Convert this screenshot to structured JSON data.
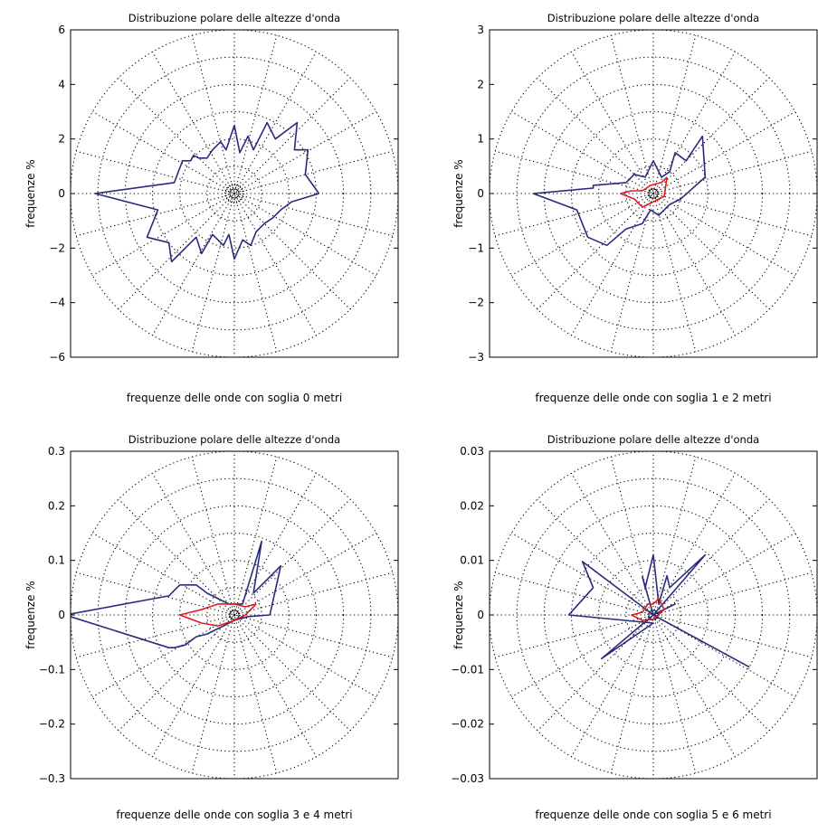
{
  "figure": {
    "background": "#ffffff",
    "grid_style": "dotted",
    "series_colors": {
      "outer": "#2b2b7e",
      "inner": "#e01b24"
    }
  },
  "chart_data": [
    {
      "type": "polar-line",
      "title": "Distribuzione polare delle altezze d'onda",
      "xlabel": "frequenze delle onde con soglia 0 metri",
      "ylabel": "frequenze %",
      "ylim": [
        -6,
        6
      ],
      "yticks": [
        "6",
        "4",
        "2",
        "0",
        "−2",
        "−4",
        "−6"
      ],
      "grid": true,
      "rings": [
        1,
        2,
        3,
        4,
        5,
        6
      ],
      "series": [
        {
          "color": "#2b2b7e",
          "points": [
            [
              3.1,
              0
            ],
            [
              2.6,
              0.7
            ],
            [
              2.7,
              1.6
            ],
            [
              2.2,
              1.6
            ],
            [
              2.3,
              2.6
            ],
            [
              1.5,
              2.0
            ],
            [
              1.2,
              2.6
            ],
            [
              0.7,
              1.6
            ],
            [
              0.5,
              2.1
            ],
            [
              0.2,
              1.5
            ],
            [
              0,
              2.5
            ],
            [
              -0.3,
              1.6
            ],
            [
              -0.5,
              1.9
            ],
            [
              -0.8,
              1.6
            ],
            [
              -1.0,
              1.3
            ],
            [
              -1.3,
              1.3
            ],
            [
              -1.5,
              1.4
            ],
            [
              -1.6,
              1.2
            ],
            [
              -1.9,
              1.2
            ],
            [
              -2.2,
              0.4
            ],
            [
              -5.1,
              0
            ],
            [
              -2.8,
              -0.6
            ],
            [
              -3.2,
              -1.6
            ],
            [
              -2.4,
              -1.8
            ],
            [
              -2.3,
              -2.5
            ],
            [
              -1.4,
              -1.6
            ],
            [
              -1.2,
              -2.2
            ],
            [
              -0.8,
              -1.5
            ],
            [
              -0.4,
              -1.9
            ],
            [
              -0.2,
              -1.5
            ],
            [
              0,
              -2.4
            ],
            [
              0.3,
              -1.7
            ],
            [
              0.6,
              -1.9
            ],
            [
              0.8,
              -1.4
            ],
            [
              1.1,
              -1.1
            ],
            [
              1.4,
              -0.9
            ],
            [
              1.7,
              -0.6
            ],
            [
              2.1,
              -0.3
            ],
            [
              3.1,
              0
            ]
          ]
        }
      ],
      "center_rings": [
        0.1,
        0.22,
        0.34
      ]
    },
    {
      "type": "polar-line",
      "title": "Distribuzione polare delle altezze d'onda",
      "xlabel": "frequenze delle onde con soglia 1 e 2 metri",
      "ylabel": "frequenze %",
      "ylim": [
        -3,
        3
      ],
      "yticks": [
        "3",
        "2",
        "1",
        "0",
        "−1",
        "−2",
        "−3"
      ],
      "grid": true,
      "rings": [
        0.5,
        1,
        1.5,
        2,
        2.5,
        3
      ],
      "series": [
        {
          "color": "#2b2b7e",
          "points": [
            [
              0.95,
              0.3
            ],
            [
              0.9,
              1.05
            ],
            [
              0.6,
              0.6
            ],
            [
              0.4,
              0.75
            ],
            [
              0.3,
              0.4
            ],
            [
              0.15,
              0.3
            ],
            [
              0,
              0.6
            ],
            [
              -0.15,
              0.3
            ],
            [
              -0.35,
              0.35
            ],
            [
              -0.5,
              0.2
            ],
            [
              -1.1,
              0.15
            ],
            [
              -1.1,
              0.1
            ],
            [
              -2.2,
              0
            ],
            [
              -1.4,
              -0.3
            ],
            [
              -1.2,
              -0.8
            ],
            [
              -0.85,
              -0.95
            ],
            [
              -0.5,
              -0.65
            ],
            [
              -0.2,
              -0.55
            ],
            [
              -0.05,
              -0.3
            ],
            [
              0.1,
              -0.4
            ],
            [
              0.3,
              -0.2
            ],
            [
              0.5,
              -0.1
            ],
            [
              0.95,
              0.3
            ]
          ]
        },
        {
          "color": "#e01b24",
          "points": [
            [
              0.25,
              0.3
            ],
            [
              0.15,
              0.2
            ],
            [
              -0.05,
              0.15
            ],
            [
              -0.2,
              0.05
            ],
            [
              -0.4,
              0.05
            ],
            [
              -0.6,
              0
            ],
            [
              -0.35,
              -0.1
            ],
            [
              -0.2,
              -0.25
            ],
            [
              0,
              -0.15
            ],
            [
              0.2,
              -0.05
            ],
            [
              0.25,
              0.3
            ]
          ]
        }
      ],
      "center_rings": [
        0.05,
        0.1
      ]
    },
    {
      "type": "polar-line",
      "title": "Distribuzione polare delle altezze d'onda",
      "xlabel": "frequenze delle onde con soglia 3 e 4 metri",
      "ylabel": "frequenze %",
      "ylim": [
        -0.3,
        0.3
      ],
      "yticks": [
        "0.3",
        "0.2",
        "0.1",
        "0",
        "−0.1",
        "−0.2",
        "−0.3"
      ],
      "grid": true,
      "rings": [
        0.05,
        0.1,
        0.15,
        0.2,
        0.25,
        0.3
      ],
      "series": [
        {
          "color": "#2b2b7e",
          "points": [
            [
              0.065,
              0.0
            ],
            [
              0.085,
              0.09
            ],
            [
              0.035,
              0.04
            ],
            [
              0.05,
              0.135
            ],
            [
              0.015,
              0.02
            ],
            [
              -0.01,
              0.02
            ],
            [
              -0.03,
              0.03
            ],
            [
              -0.05,
              0.04
            ],
            [
              -0.07,
              0.055
            ],
            [
              -0.1,
              0.055
            ],
            [
              -0.12,
              0.035
            ],
            [
              -0.31,
              0
            ],
            [
              -0.12,
              -0.06
            ],
            [
              -0.11,
              -0.06
            ],
            [
              -0.09,
              -0.055
            ],
            [
              -0.07,
              -0.04
            ],
            [
              -0.05,
              -0.035
            ],
            [
              -0.02,
              -0.02
            ],
            [
              0,
              -0.01
            ],
            [
              0.025,
              -0.003
            ],
            [
              0.065,
              0.0
            ]
          ]
        },
        {
          "color": "#e01b24",
          "points": [
            [
              0.04,
              0.02
            ],
            [
              0.02,
              0.015
            ],
            [
              0,
              0.02
            ],
            [
              -0.03,
              0.02
            ],
            [
              -0.06,
              0.01
            ],
            [
              -0.1,
              0.0
            ],
            [
              -0.06,
              -0.015
            ],
            [
              -0.03,
              -0.02
            ],
            [
              0,
              -0.01
            ],
            [
              0.02,
              0
            ],
            [
              0.04,
              0.02
            ]
          ]
        }
      ],
      "center_rings": [
        0.005,
        0.01
      ]
    },
    {
      "type": "polar-line",
      "title": "Distribuzione polare delle altezze d'onda",
      "xlabel": "frequenze delle onde con soglia 5 e 6 metri",
      "ylabel": "frequenze %",
      "ylim": [
        -0.03,
        0.03
      ],
      "yticks": [
        "0.03",
        "0.02",
        "0.01",
        "0",
        "−0.01",
        "−0.02",
        "−0.03"
      ],
      "grid": true,
      "rings": [
        0.005,
        0.01,
        0.015,
        0.02,
        0.025,
        0.03
      ],
      "series": [
        {
          "color": "#2b2b7e",
          "points": [
            [
              0,
              0
            ],
            [
              0.0095,
              0.011
            ],
            [
              0.003,
              0.005
            ],
            [
              0.0025,
              0.0072
            ],
            [
              0.001,
              0.002
            ],
            [
              0,
              0.011
            ],
            [
              -0.0015,
              0.005
            ],
            [
              -0.002,
              0.007
            ],
            [
              0,
              0
            ],
            [
              -0.013,
              0.0098
            ],
            [
              -0.011,
              0.005
            ],
            [
              -0.0155,
              0
            ],
            [
              0,
              -0.0015
            ],
            [
              -0.0095,
              -0.008
            ],
            [
              0,
              0
            ],
            [
              0.0175,
              -0.0095
            ],
            [
              0,
              0
            ],
            [
              0.004,
              0.002
            ],
            [
              0,
              0
            ]
          ]
        },
        {
          "color": "#e01b24",
          "points": [
            [
              0.002,
              0.001
            ],
            [
              0.001,
              0.003
            ],
            [
              0,
              0.002
            ],
            [
              -0.001,
              0.002
            ],
            [
              -0.002,
              0.0005
            ],
            [
              -0.004,
              0
            ],
            [
              -0.002,
              -0.001
            ],
            [
              0,
              -0.0008
            ],
            [
              0.002,
              0.001
            ]
          ]
        }
      ],
      "center_rings": [
        0.0005,
        0.001
      ]
    }
  ]
}
